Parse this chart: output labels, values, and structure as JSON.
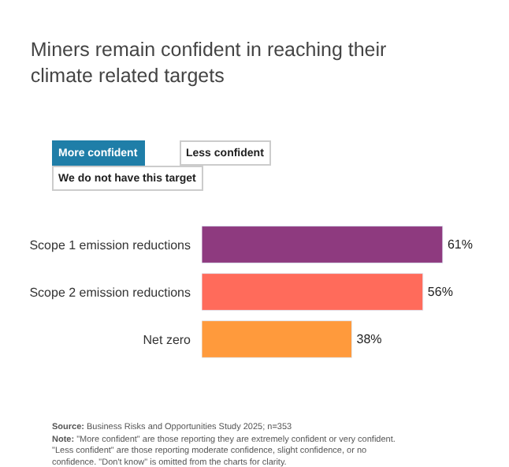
{
  "chart_data": {
    "type": "bar",
    "orientation": "horizontal",
    "title": "Miners remain confident in reaching their climate related targets",
    "categories": [
      "Scope 1 emission reductions",
      "Scope 2 emission reductions",
      "Net zero"
    ],
    "values": [
      61,
      56,
      38
    ],
    "colors": [
      "#8e3a7f",
      "#ff6b5b",
      "#ff9a3c"
    ],
    "value_labels": [
      "61%",
      "56%",
      "38%"
    ],
    "tick_labels": "y",
    "legend": false,
    "annotations": [
      "More confident",
      "Less confident",
      "We do not have this target",
      "Source: Business Risks and Opportunities Study 2025; n=353",
      "Note: \"More confident\" are those reporting they are extremely confident or very confident. \"Less confident\" are those reporting moderate confidence, slight confidence, or no confidence. \"Don't know\" is omitted from the charts for clarity."
    ]
  }
}
